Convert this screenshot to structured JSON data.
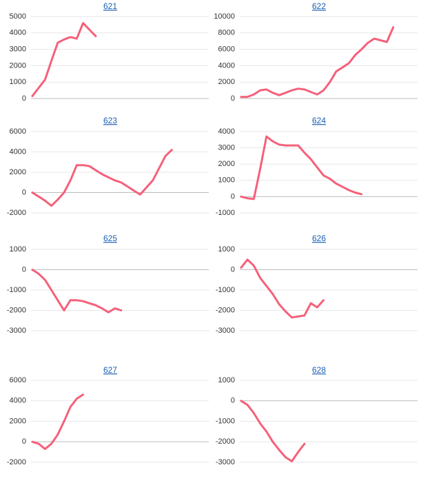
{
  "chart_data": [
    {
      "type": "line",
      "title": "621",
      "color": "#f5607a",
      "ylim": [
        0,
        5000
      ],
      "yticks": [
        0,
        1000,
        2000,
        3000,
        4000,
        5000
      ],
      "grid": true,
      "values": [
        150,
        650,
        1150,
        2300,
        3400,
        3600,
        3750,
        3650,
        4600,
        4200,
        3800
      ]
    },
    {
      "type": "line",
      "title": "622",
      "color": "#f5607a",
      "ylim": [
        0,
        10000
      ],
      "yticks": [
        0,
        2000,
        4000,
        6000,
        8000,
        10000
      ],
      "grid": true,
      "values": [
        200,
        200,
        500,
        1000,
        1100,
        700,
        400,
        700,
        1000,
        1200,
        1100,
        800,
        500,
        1000,
        2000,
        3300,
        3800,
        4300,
        5300,
        6000,
        6800,
        7300,
        7100,
        6900,
        8700
      ]
    },
    {
      "type": "line",
      "title": "623",
      "color": "#f5607a",
      "ylim": [
        -2000,
        6000
      ],
      "yticks": [
        -2000,
        0,
        2000,
        4000,
        6000
      ],
      "grid": true,
      "values": [
        0,
        -400,
        -800,
        -1300,
        -700,
        0,
        1200,
        2700,
        2700,
        2600,
        2200,
        1800,
        1500,
        1200,
        1000,
        600,
        200,
        -200,
        500,
        1200,
        2400,
        3600,
        4200
      ]
    },
    {
      "type": "line",
      "title": "624",
      "color": "#f5607a",
      "ylim": [
        -1000,
        4000
      ],
      "yticks": [
        -1000,
        0,
        1000,
        2000,
        3000,
        4000
      ],
      "grid": true,
      "values": [
        0,
        -100,
        -150,
        1700,
        3700,
        3400,
        3200,
        3150,
        3150,
        3150,
        2700,
        2300,
        1800,
        1300,
        1100,
        800,
        600,
        400,
        250,
        150
      ]
    },
    {
      "type": "line",
      "title": "625",
      "color": "#f5607a",
      "ylim": [
        -3000,
        1000
      ],
      "yticks": [
        -3000,
        -2000,
        -1000,
        0,
        1000
      ],
      "grid": true,
      "values": [
        0,
        -200,
        -500,
        -1000,
        -1500,
        -2000,
        -1500,
        -1500,
        -1550,
        -1650,
        -1750,
        -1900,
        -2100,
        -1900,
        -2000
      ]
    },
    {
      "type": "line",
      "title": "626",
      "color": "#f5607a",
      "ylim": [
        -3000,
        1000
      ],
      "yticks": [
        -3000,
        -2000,
        -1000,
        0,
        1000
      ],
      "grid": true,
      "values": [
        100,
        500,
        200,
        -400,
        -800,
        -1200,
        -1700,
        -2050,
        -2350,
        -2300,
        -2250,
        -1650,
        -1850,
        -1500
      ]
    },
    {
      "type": "line",
      "title": "627",
      "color": "#f5607a",
      "ylim": [
        -2000,
        6000
      ],
      "yticks": [
        -2000,
        0,
        2000,
        4000,
        6000
      ],
      "grid": true,
      "values": [
        0,
        -200,
        -700,
        -200,
        700,
        2000,
        3400,
        4200,
        4600
      ]
    },
    {
      "type": "line",
      "title": "628",
      "color": "#f5607a",
      "ylim": [
        -3000,
        1000
      ],
      "yticks": [
        -3000,
        -2000,
        -1000,
        0,
        1000
      ],
      "grid": true,
      "values": [
        0,
        -200,
        -600,
        -1100,
        -1500,
        -2000,
        -2400,
        -2750,
        -2950,
        -2500,
        -2100
      ]
    }
  ]
}
